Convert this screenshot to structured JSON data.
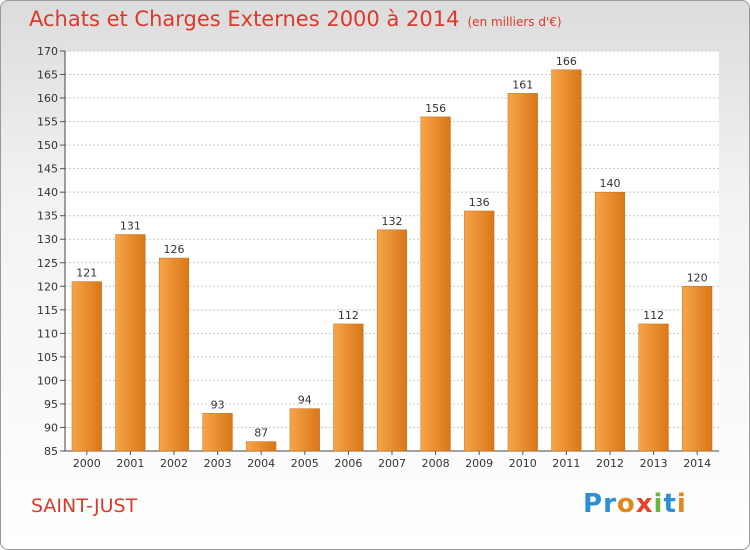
{
  "title": "Achats et Charges Externes 2000 à 2014",
  "subtitle": "(en milliers d'€)",
  "city": "SAINT-JUST",
  "logo": {
    "text": "Proxiti",
    "colors": [
      "#2b8fd6",
      "#2b8fd6",
      "#e08a1e",
      "#e8432a",
      "#6ab33e",
      "#2b8fd6",
      "#e08a1e"
    ]
  },
  "colors": {
    "title": "#d93a2b",
    "bar_light": "#f7a44a",
    "bar_dark": "#d87718",
    "grid": "#c8c8c8"
  },
  "chart_data": {
    "type": "bar",
    "categories": [
      "2000",
      "2001",
      "2002",
      "2003",
      "2004",
      "2005",
      "2006",
      "2007",
      "2008",
      "2009",
      "2010",
      "2011",
      "2012",
      "2013",
      "2014"
    ],
    "values": [
      121,
      131,
      126,
      93,
      87,
      94,
      112,
      132,
      156,
      136,
      161,
      166,
      140,
      112,
      120
    ],
    "title": "Achats et Charges Externes 2000 à 2014",
    "xlabel": "",
    "ylabel": "",
    "ylim": [
      85,
      170
    ],
    "yticks": [
      85,
      90,
      95,
      100,
      105,
      110,
      115,
      120,
      125,
      130,
      135,
      140,
      145,
      150,
      155,
      160,
      165,
      170
    ],
    "grid": true,
    "data_labels": true
  }
}
